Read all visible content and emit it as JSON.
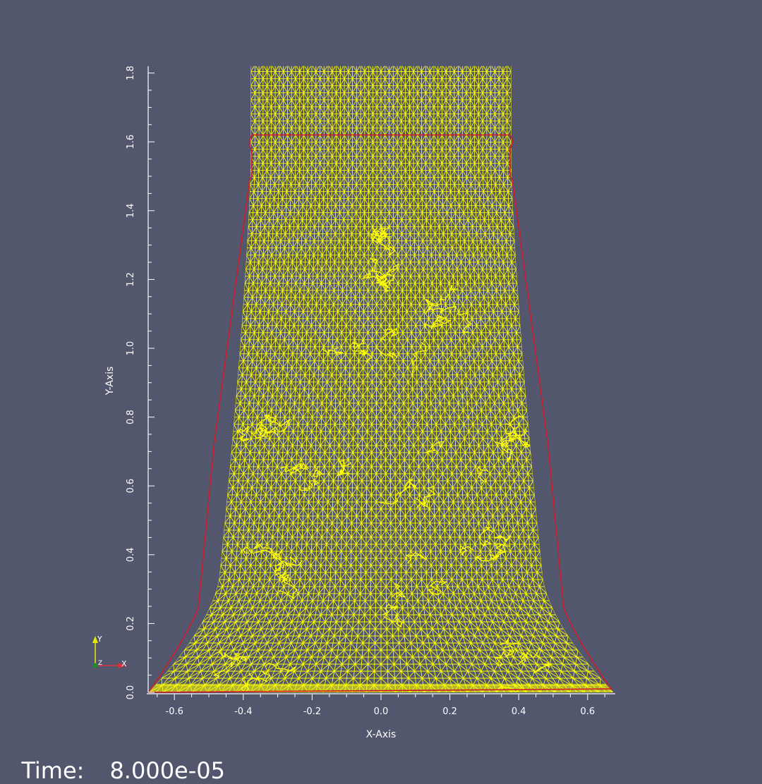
{
  "axes": {
    "x_title": "X-Axis",
    "y_title": "Y-Axis",
    "x_ticks": [
      "-0.6",
      "-0.4",
      "-0.2",
      "0.0",
      "0.2",
      "0.4",
      "0.6"
    ],
    "y_ticks": [
      "0.0",
      "0.2",
      "0.4",
      "0.6",
      "0.8",
      "1.0",
      "1.2",
      "1.4",
      "1.6",
      "1.8"
    ]
  },
  "orientation_widget": {
    "x_label": "X",
    "y_label": "Y",
    "z_label": "Z"
  },
  "time": {
    "label": "Time:",
    "value": "8.000e-05"
  },
  "colors": {
    "background": "#52576e",
    "mesh": "#ffff00",
    "outline": "#d11a2a",
    "text": "#ffffff"
  }
}
